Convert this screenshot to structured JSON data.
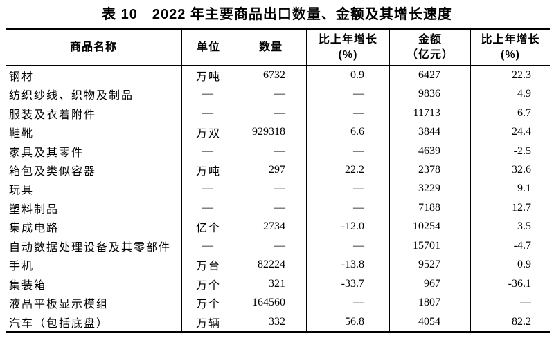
{
  "title": "表 10　2022 年主要商品出口数量、金额及其增长速度",
  "header": {
    "cols": [
      {
        "line1": "商品名称",
        "line2": ""
      },
      {
        "line1": "单位",
        "line2": ""
      },
      {
        "line1": "数量",
        "line2": ""
      },
      {
        "line1": "比上年增长",
        "line2": "(%)"
      },
      {
        "line1": "金额",
        "line2": "（亿元）"
      },
      {
        "line1": "比上年增长",
        "line2": "(%)"
      }
    ]
  },
  "rows": [
    {
      "name": "钢材",
      "unit": "万吨",
      "quantity": "6732",
      "quantity_growth": "0.9",
      "amount": "6427",
      "amount_growth": "22.3"
    },
    {
      "name": "纺织纱线、织物及制品",
      "unit": "—",
      "quantity": "—",
      "quantity_growth": "—",
      "amount": "9836",
      "amount_growth": "4.9"
    },
    {
      "name": "服装及衣着附件",
      "unit": "—",
      "quantity": "—",
      "quantity_growth": "—",
      "amount": "11713",
      "amount_growth": "6.7"
    },
    {
      "name": "鞋靴",
      "unit": "万双",
      "quantity": "929318",
      "quantity_growth": "6.6",
      "amount": "3844",
      "amount_growth": "24.4"
    },
    {
      "name": "家具及其零件",
      "unit": "—",
      "quantity": "—",
      "quantity_growth": "—",
      "amount": "4639",
      "amount_growth": "-2.5"
    },
    {
      "name": "箱包及类似容器",
      "unit": "万吨",
      "quantity": "297",
      "quantity_growth": "22.2",
      "amount": "2378",
      "amount_growth": "32.6"
    },
    {
      "name": "玩具",
      "unit": "—",
      "quantity": "—",
      "quantity_growth": "—",
      "amount": "3229",
      "amount_growth": "9.1"
    },
    {
      "name": "塑料制品",
      "unit": "—",
      "quantity": "—",
      "quantity_growth": "—",
      "amount": "7188",
      "amount_growth": "12.7"
    },
    {
      "name": "集成电路",
      "unit": "亿个",
      "quantity": "2734",
      "quantity_growth": "-12.0",
      "amount": "10254",
      "amount_growth": "3.5"
    },
    {
      "name": "自动数据处理设备及其零部件",
      "unit": "—",
      "quantity": "—",
      "quantity_growth": "—",
      "amount": "15701",
      "amount_growth": "-4.7"
    },
    {
      "name": "手机",
      "unit": "万台",
      "quantity": "82224",
      "quantity_growth": "-13.8",
      "amount": "9527",
      "amount_growth": "0.9"
    },
    {
      "name": "集装箱",
      "unit": "万个",
      "quantity": "321",
      "quantity_growth": "-33.7",
      "amount": "967",
      "amount_growth": "-36.1"
    },
    {
      "name": "液晶平板显示模组",
      "unit": "万个",
      "quantity": "164560",
      "quantity_growth": "—",
      "amount": "1807",
      "amount_growth": "—"
    },
    {
      "name": "汽车（包括底盘）",
      "unit": "万辆",
      "quantity": "332",
      "quantity_growth": "56.8",
      "amount": "4054",
      "amount_growth": "82.2"
    }
  ]
}
